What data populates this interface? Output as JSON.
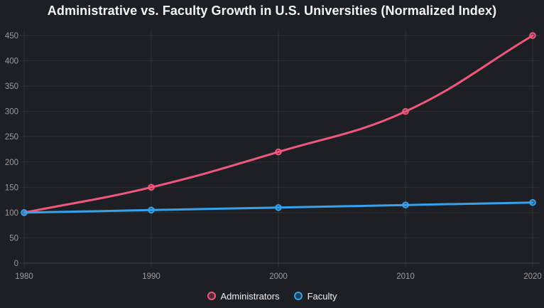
{
  "page": {
    "background": "#1d1f24"
  },
  "chart_data": {
    "type": "line",
    "title": "Administrative vs. Faculty Growth in U.S. Universities (Normalized Index)",
    "categories": [
      "1980",
      "1990",
      "2000",
      "2010",
      "2020"
    ],
    "series": [
      {
        "name": "Administrators",
        "color": "#ef587c",
        "values": [
          100,
          150,
          220,
          300,
          450
        ]
      },
      {
        "name": "Faculty",
        "color": "#36a2eb",
        "values": [
          100,
          105,
          110,
          115,
          120
        ]
      }
    ],
    "xlabel": "",
    "ylabel": "",
    "ylim": [
      0,
      450
    ],
    "y_ticks": [
      0,
      50,
      100,
      150,
      200,
      250,
      300,
      350,
      400,
      450
    ],
    "grid": true,
    "legend_position": "bottom",
    "line_tension": 0.4,
    "theme": {
      "grid_color": "rgba(255,255,255,0.08)",
      "baseline_color": "rgba(255,255,255,0.15)",
      "tick_label_color": "#9b9ca1",
      "title_color": "#f2f3f5",
      "legend_text_color": "#eef0f2"
    }
  }
}
